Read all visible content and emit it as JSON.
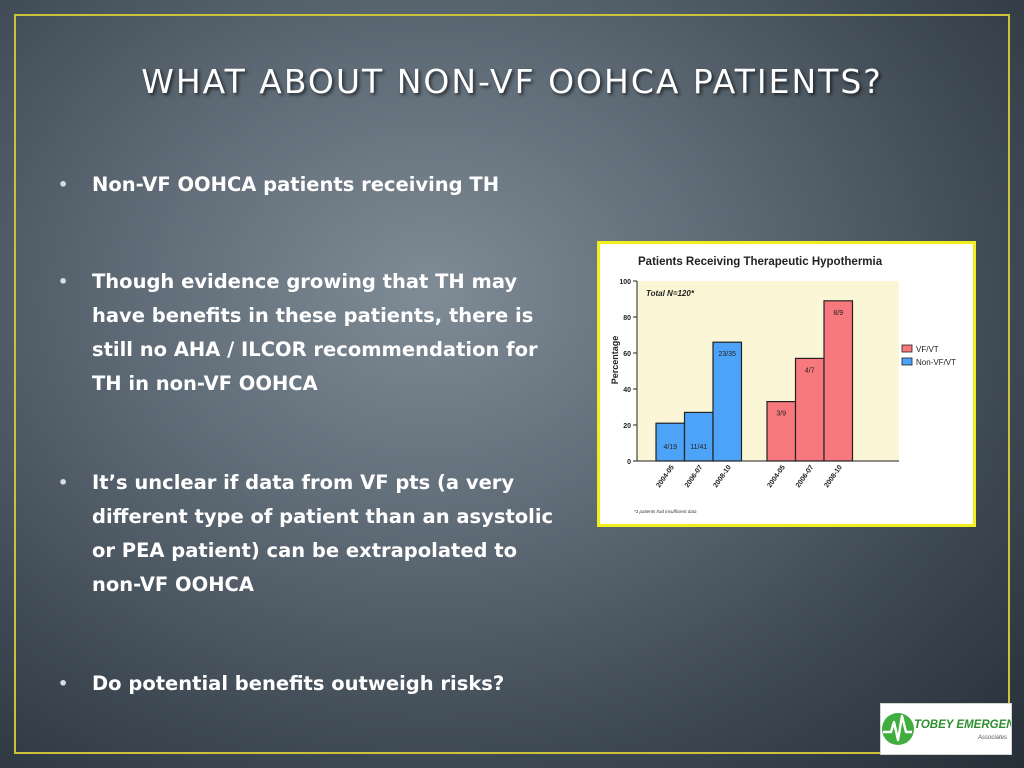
{
  "slide": {
    "title": "WHAT ABOUT NON-VF OOHCA PATIENTS?",
    "bullets": [
      "Non-VF OOHCA patients receiving TH",
      "Though evidence growing that TH may have benefits in these patients, there is still no AHA / ILCOR recommendation for TH in non-VF OOHCA",
      "It’s unclear if data from VF pts (a very different type of patient than an asystolic or PEA patient) can be extrapolated to non-VF OOHCA",
      "Do potential benefits outweigh risks?"
    ],
    "bullet_icon": "bullet-dot",
    "accent_color": "#c9c23a"
  },
  "chart_data": {
    "type": "bar",
    "title": "Patients Receiving Therapeutic Hypothermia",
    "annotation": "Total N=120*",
    "footnote": "*3 patients had insufficient data",
    "ylabel": "Percentage",
    "xlabel": "",
    "ylim": [
      0,
      100
    ],
    "yticks": [
      0,
      20,
      40,
      60,
      80,
      100
    ],
    "grid": false,
    "legend": "right",
    "series": [
      {
        "name": "Non-VF/VT",
        "color": "#4da3f7",
        "categories": [
          "2004-05",
          "2006-07",
          "2008-10"
        ],
        "values": [
          21,
          27,
          66
        ],
        "labels": [
          "4/19",
          "11/41",
          "23/35"
        ]
      },
      {
        "name": "VF/VT",
        "color": "#f7797d",
        "categories": [
          "2004-05",
          "2006-07",
          "2008-10"
        ],
        "values": [
          33,
          57,
          89
        ],
        "labels": [
          "3/9",
          "4/7",
          "8/9"
        ]
      }
    ],
    "legend_order": [
      "VF/VT",
      "Non-VF/VT"
    ]
  },
  "logo": {
    "text_main": "TOBEY EMERGENCY",
    "text_sub": "Associates",
    "icon": "heartbeat-icon"
  }
}
